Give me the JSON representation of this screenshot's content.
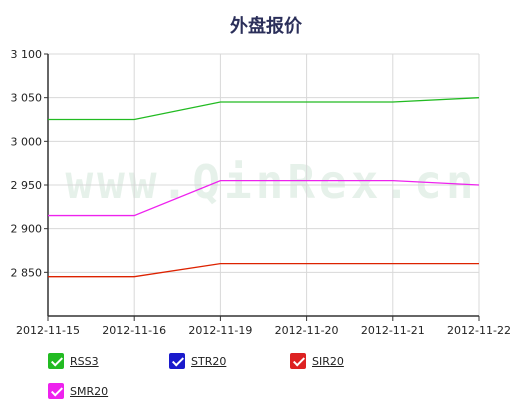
{
  "chart_data": {
    "type": "line",
    "title": "外盘报价",
    "watermark": "www.QinRex.cn",
    "x": [
      "2012-11-15",
      "2012-11-16",
      "2012-11-19",
      "2012-11-20",
      "2012-11-21",
      "2012-11-22"
    ],
    "ylim": [
      2800,
      3100
    ],
    "yticks": [
      "3 100",
      "3 050",
      "3 000",
      "2 950",
      "2 900",
      "2 850"
    ],
    "ytick_values": [
      3100,
      3050,
      3000,
      2950,
      2900,
      2850
    ],
    "grid": true,
    "legend_position": "bottom",
    "series": [
      {
        "name": "RSS3",
        "color": "#22bb22",
        "values": [
          3025,
          3025,
          3045,
          3045,
          3045,
          3050
        ]
      },
      {
        "name": "SMR20",
        "color": "#ee22ee",
        "values": [
          2915,
          2915,
          2955,
          2955,
          2955,
          2950
        ]
      },
      {
        "name": "SIR20",
        "color": "#dd2200",
        "values": [
          2845,
          2845,
          2860,
          2860,
          2860,
          2860
        ]
      },
      {
        "name": "STR20",
        "color": "#1a1acc",
        "values": null
      }
    ],
    "legend": [
      {
        "name": "RSS3",
        "color": "#22bb22"
      },
      {
        "name": "STR20",
        "color": "#1a1acc"
      },
      {
        "name": "SIR20",
        "color": "#dd2222"
      },
      {
        "name": "SMR20",
        "color": "#ee22ee"
      }
    ]
  }
}
